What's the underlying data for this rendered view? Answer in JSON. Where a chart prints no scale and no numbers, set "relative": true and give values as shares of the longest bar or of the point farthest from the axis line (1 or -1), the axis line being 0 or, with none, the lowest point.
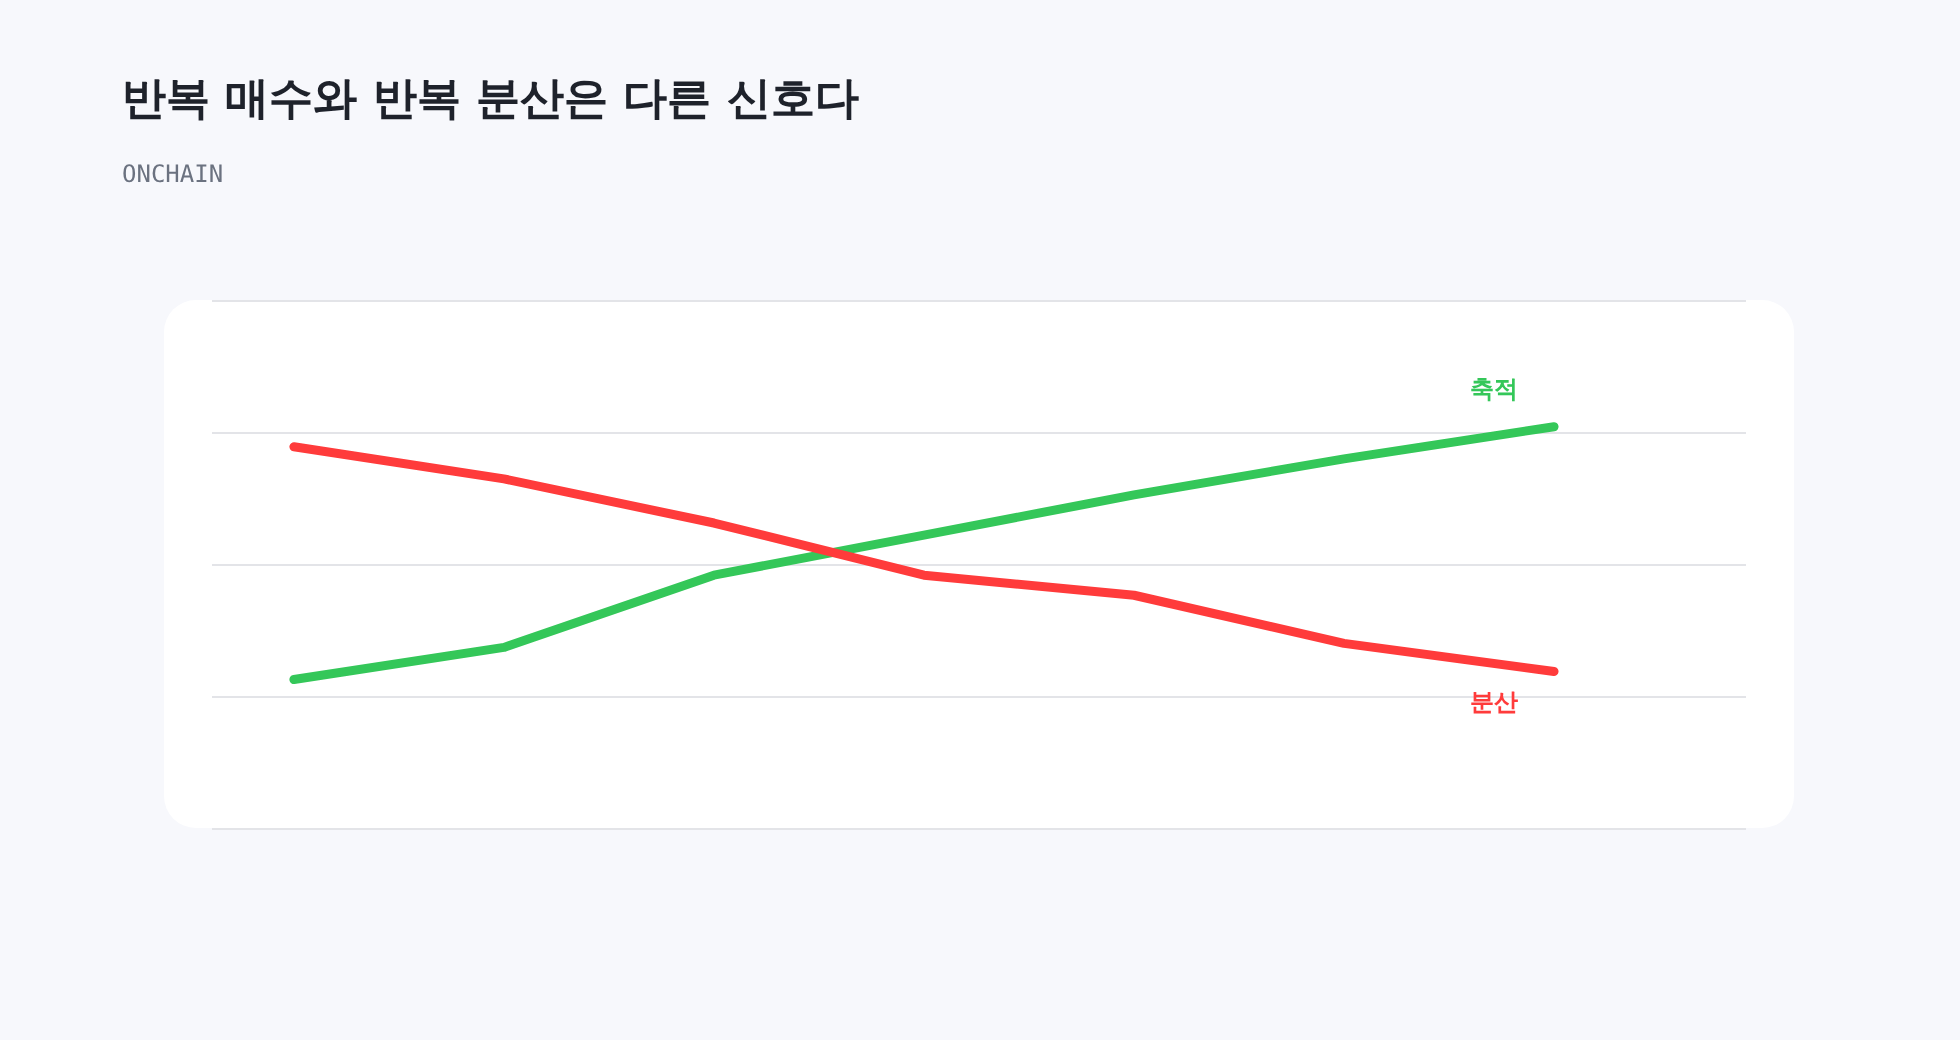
{
  "chart_data": {
    "type": "line",
    "title": "반복 매수와 반복 분산은 다른 신호다",
    "subtitle": "ONCHAIN",
    "categories": [
      null,
      null,
      null,
      null,
      null,
      null,
      null
    ],
    "relative": true,
    "series": [
      {
        "name": "축적",
        "color": "#34c759",
        "values": [
          0.37,
          0.45,
          0.63,
          0.73,
          0.83,
          0.92,
          1
        ]
      },
      {
        "name": "분산",
        "color": "#ff3b3b",
        "values": [
          0.95,
          0.87,
          0.76,
          0.63,
          0.58,
          0.46,
          0.39
        ]
      }
    ],
    "grid": "y",
    "marker": "none",
    "line_style": "solid"
  }
}
